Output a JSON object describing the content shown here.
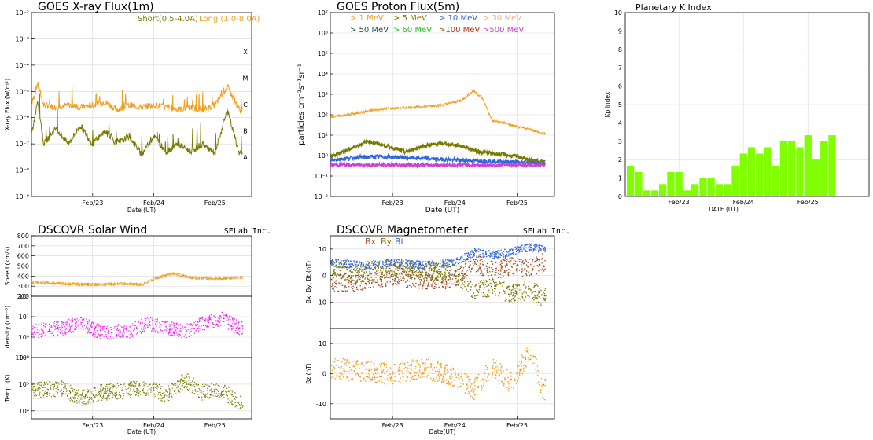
{
  "chart_data": [
    {
      "id": "xray",
      "type": "line",
      "title": "GOES X-ray Flux(1m)",
      "ylabel": "X-ray Flux (W/m²)",
      "xlabel": "Date (UT)",
      "yscale": "log",
      "ylim": [
        1e-09,
        0.01
      ],
      "xlim": [
        0,
        3.6
      ],
      "x_ticks": [
        {
          "label": "Feb/23",
          "x": 1
        },
        {
          "label": "Feb/24",
          "x": 2
        },
        {
          "label": "Feb/25",
          "x": 3
        }
      ],
      "y_ticks": [
        "10⁻⁹",
        "10⁻⁸",
        "10⁻⁷",
        "10⁻⁶",
        "10⁻⁵",
        "10⁻⁴",
        "10⁻³",
        "10⁻²"
      ],
      "class_labels": [
        "A",
        "B",
        "C",
        "M",
        "X"
      ],
      "legend": [
        {
          "label": "Short(0.5-4.0A)",
          "color": "#7a7a00"
        },
        {
          "label": "Long (1.0-8.0A)",
          "color": "#f0a020"
        }
      ],
      "series": [
        {
          "name": "Long (1.0-8.0A)",
          "color": "#f0a020",
          "x": [
            0,
            0.1,
            0.2,
            0.4,
            0.6,
            0.8,
            1,
            1.2,
            1.4,
            1.6,
            1.8,
            2,
            2.2,
            2.4,
            2.6,
            2.8,
            3,
            3.2,
            3.4
          ],
          "y": [
            3e-06,
            2e-05,
            3e-06,
            2.5e-06,
            3e-06,
            2.5e-06,
            3e-06,
            4e-06,
            2e-06,
            3e-06,
            2.5e-06,
            3e-06,
            2.5e-06,
            2e-06,
            2.5e-06,
            2e-06,
            3e-06,
            1.5e-05,
            2e-06
          ]
        },
        {
          "name": "Short(0.5-4.0A)",
          "color": "#7a7a00",
          "x": [
            0,
            0.1,
            0.2,
            0.4,
            0.6,
            0.8,
            1,
            1.2,
            1.4,
            1.6,
            1.8,
            2,
            2.2,
            2.4,
            2.6,
            2.8,
            3,
            3.2,
            3.4
          ],
          "y": [
            2e-07,
            5e-06,
            1e-07,
            4e-07,
            1e-07,
            5e-07,
            1e-07,
            3e-07,
            1e-07,
            2e-07,
            4e-08,
            2e-07,
            5e-08,
            1e-07,
            5e-08,
            1e-07,
            4e-08,
            2e-06,
            4e-08
          ]
        }
      ]
    },
    {
      "id": "proton",
      "type": "line",
      "title": "GOES Proton Flux(5m)",
      "ylabel": "particles cm⁻²s⁻¹sr⁻¹",
      "xlabel": "Date (UT)",
      "yscale": "log",
      "ylim": [
        0.01,
        10000000.0
      ],
      "xlim": [
        0,
        3.6
      ],
      "x_ticks": [
        {
          "label": "Feb/23",
          "x": 1
        },
        {
          "label": "Feb/24",
          "x": 2
        },
        {
          "label": "Feb/25",
          "x": 3
        }
      ],
      "y_ticks": [
        "10⁻²",
        "10⁻¹",
        "10⁰",
        "10¹",
        "10²",
        "10³",
        "10⁴",
        "10⁵",
        "10⁶",
        "10⁷"
      ],
      "legend": [
        {
          "label": ">  1 MeV",
          "color": "#f0a020"
        },
        {
          "label": ">  5 MeV",
          "color": "#7a7a00"
        },
        {
          "label": "> 10 MeV",
          "color": "#3366dd"
        },
        {
          "label": "> 30 MeV",
          "color": "#e8b090"
        },
        {
          "label": "> 50 MeV",
          "color": "#205050"
        },
        {
          "label": "> 60 MeV",
          "color": "#22bb22"
        },
        {
          "label": ">100 MeV",
          "color": "#aa3311"
        },
        {
          "label": ">500 MeV",
          "color": "#cc44cc"
        }
      ],
      "series": [
        {
          "name": ">1 MeV",
          "color": "#f0a020",
          "x": [
            0,
            0.3,
            0.6,
            0.9,
            1.2,
            1.5,
            1.8,
            2.1,
            2.3,
            2.45,
            2.6,
            2.8,
            3,
            3.2,
            3.4
          ],
          "y": [
            80,
            100,
            150,
            200,
            220,
            250,
            300,
            500,
            1500,
            600,
            50,
            40,
            25,
            20,
            12
          ]
        },
        {
          "name": ">5 MeV",
          "color": "#7a7a00",
          "x": [
            0,
            0.3,
            0.6,
            0.9,
            1.2,
            1.5,
            1.8,
            2.1,
            2.4,
            2.7,
            3,
            3.2,
            3.4
          ],
          "y": [
            0.9,
            2,
            5,
            3,
            1.5,
            3,
            4,
            3,
            1.5,
            1.2,
            0.9,
            0.6,
            0.5
          ]
        },
        {
          "name": ">10 MeV",
          "color": "#3366dd",
          "x": [
            0,
            0.4,
            0.8,
            1.2,
            1.6,
            2,
            2.4,
            2.8,
            3.2,
            3.4
          ],
          "y": [
            0.6,
            0.8,
            0.9,
            0.8,
            0.7,
            0.6,
            0.55,
            0.5,
            0.45,
            0.4
          ]
        },
        {
          "name": ">500 MeV",
          "color": "#cc44cc",
          "x": [
            0,
            0.4,
            0.8,
            1.2,
            1.6,
            2,
            2.4,
            2.8,
            3.2,
            3.4
          ],
          "y": [
            0.35,
            0.35,
            0.34,
            0.35,
            0.34,
            0.35,
            0.34,
            0.35,
            0.34,
            0.35
          ]
        }
      ]
    },
    {
      "id": "kp",
      "type": "bar",
      "title": "Planetary K Index",
      "ylabel": "Kp Index",
      "xlabel": "DATE (UT)",
      "ylim": [
        0,
        10
      ],
      "y_ticks": [
        "0",
        "1",
        "2",
        "3",
        "4",
        "5",
        "6",
        "7",
        "8",
        "9",
        "10"
      ],
      "x_ticks": [
        {
          "label": "Feb/23",
          "index": 6
        },
        {
          "label": "Feb/24",
          "index": 14
        },
        {
          "label": "Feb/25",
          "index": 22
        }
      ],
      "bar_color": "#7fff00",
      "values": [
        1.67,
        1.33,
        0.33,
        0.33,
        0.67,
        1.33,
        1.33,
        0.33,
        0.67,
        1,
        1,
        0.67,
        0.67,
        1.67,
        2.33,
        2.67,
        2.33,
        2.67,
        1.67,
        3,
        3,
        2.67,
        3.33,
        2,
        3,
        3.33
      ]
    },
    {
      "id": "solarwind",
      "type": "scatter",
      "title": "DSCOVR Solar Wind",
      "credit": "SELab Inc.",
      "xlabel": "Date (UT)",
      "xlim": [
        0,
        3.6
      ],
      "x_ticks": [
        {
          "label": "Feb/23",
          "x": 1
        },
        {
          "label": "Feb/24",
          "x": 2
        },
        {
          "label": "Feb/25",
          "x": 3
        }
      ],
      "panels": [
        {
          "ylabel": "Speed (km/s)",
          "ylim": [
            200,
            800
          ],
          "y_ticks": [
            "800",
            "700",
            "600",
            "500",
            "400",
            "300",
            "200"
          ],
          "color": "#f0a020",
          "x": [
            0,
            0.5,
            1,
            1.5,
            1.8,
            2,
            2.3,
            2.6,
            3,
            3.4
          ],
          "y": [
            340,
            330,
            320,
            330,
            320,
            380,
            430,
            390,
            380,
            390
          ]
        },
        {
          "ylabel": "density (cm⁻³)",
          "yscale": "log",
          "ylim": [
            0.1,
            100
          ],
          "y_ticks": [
            "10²",
            "10¹",
            "10⁰",
            "10⁻¹"
          ],
          "color": "#ee22ee",
          "x": [
            0,
            0.5,
            0.8,
            1.1,
            1.6,
            1.9,
            2.2,
            2.5,
            2.8,
            3.1,
            3.4
          ],
          "y": [
            2,
            3,
            5,
            2,
            2,
            5,
            3,
            2,
            5,
            8,
            3
          ]
        },
        {
          "ylabel": "Temp. (K)",
          "yscale": "log",
          "ylim": [
            5000,
            1000000
          ],
          "y_ticks": [
            "10⁶",
            "10⁵",
            "10⁴"
          ],
          "color": "#7a7a00",
          "x": [
            0,
            0.5,
            0.8,
            1.1,
            1.5,
            1.9,
            2.2,
            2.5,
            2.8,
            3.1,
            3.4
          ],
          "y": [
            60000,
            70000,
            30000,
            50000,
            60000,
            80000,
            40000,
            150000,
            50000,
            60000,
            20000
          ]
        }
      ]
    },
    {
      "id": "magnetometer",
      "type": "scatter",
      "title": "DSCOVR Magnetometer",
      "credit": "SELab Inc.",
      "xlabel": "Date(UT)",
      "xlim": [
        0,
        3.6
      ],
      "x_ticks": [
        {
          "label": "Feb/23",
          "x": 1
        },
        {
          "label": "Feb/24",
          "x": 2
        },
        {
          "label": "Feb/25",
          "x": 3
        }
      ],
      "legend": [
        {
          "label": "Bx",
          "color": "#a0522d"
        },
        {
          "label": "By",
          "color": "#7a7a00"
        },
        {
          "label": "Bt",
          "color": "#3366dd"
        }
      ],
      "panels": [
        {
          "ylabel": "Bx, By, Bt (nT)",
          "ylim": [
            -20,
            15
          ],
          "y_ticks": [
            "10",
            "0",
            "-10"
          ],
          "series": [
            {
              "name": "Bt",
              "color": "#3366dd",
              "x": [
                0,
                0.5,
                1,
                1.5,
                2,
                2.3,
                2.6,
                2.9,
                3.2,
                3.4
              ],
              "y": [
                5,
                4,
                5,
                4,
                5,
                9,
                8,
                9,
                11,
                10
              ]
            },
            {
              "name": "Bx",
              "color": "#a0522d",
              "x": [
                0,
                0.5,
                1,
                1.5,
                2,
                2.3,
                2.6,
                2.9,
                3.2,
                3.4
              ],
              "y": [
                -3,
                -2,
                0,
                -2,
                -1,
                5,
                2,
                4,
                3,
                5
              ]
            },
            {
              "name": "By",
              "color": "#7a7a00",
              "x": [
                0,
                0.5,
                1,
                1.5,
                2,
                2.3,
                2.6,
                2.9,
                3.2,
                3.4
              ],
              "y": [
                2,
                1,
                3,
                2,
                1,
                -6,
                -4,
                -7,
                -5,
                -8
              ]
            }
          ]
        },
        {
          "ylabel": "Bz (nT)",
          "ylim": [
            -15,
            15
          ],
          "y_ticks": [
            "10",
            "0",
            "-10"
          ],
          "series": [
            {
              "name": "Bz",
              "color": "#f0a020",
              "x": [
                0,
                0.5,
                1,
                1.5,
                2,
                2.3,
                2.6,
                2.9,
                3.2,
                3.4
              ],
              "y": [
                2,
                1,
                0,
                2,
                -1,
                -5,
                2,
                -3,
                8,
                -5
              ]
            }
          ]
        }
      ]
    }
  ]
}
